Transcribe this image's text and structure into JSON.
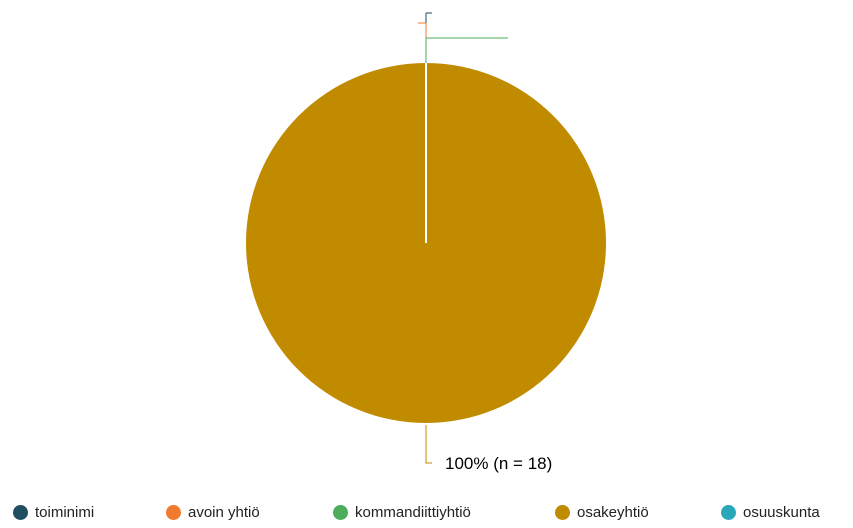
{
  "chart_data": {
    "type": "pie",
    "total_n": 18,
    "slices": [
      {
        "label": "toiminimi",
        "value": 0,
        "color": "#1f4e5f"
      },
      {
        "label": "avoin yhtiö",
        "value": 0,
        "color": "#f07a2e"
      },
      {
        "label": "kommandiittiyhtiö",
        "value": 0,
        "color": "#4cae5a"
      },
      {
        "label": "osakeyhtiö",
        "value": 18,
        "percent": 100,
        "color": "#c18b00",
        "data_label": "100% (n = 18)"
      },
      {
        "label": "osuuskunta",
        "value": 0,
        "color": "#2aa7b8"
      }
    ],
    "legend_position": "bottom"
  }
}
